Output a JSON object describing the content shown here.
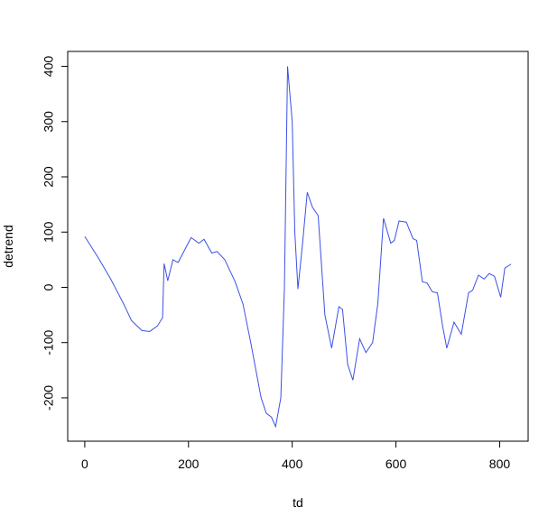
{
  "chart_data": {
    "type": "line",
    "xlabel": "td",
    "ylabel": "detrend",
    "xlim": [
      -32.9,
      854.9
    ],
    "ylim": [
      -278.5,
      427
    ],
    "xticks": [
      0,
      200,
      400,
      600,
      800
    ],
    "yticks": [
      -200,
      -100,
      0,
      100,
      200,
      300,
      400
    ],
    "series": [
      {
        "color": "#3b50e6",
        "x": [
          0,
          25,
          50,
          75,
          90,
          110,
          125,
          140,
          150,
          153,
          160,
          170,
          180,
          205,
          220,
          230,
          245,
          255,
          270,
          290,
          305,
          320,
          340,
          350,
          360,
          368,
          378,
          385,
          391,
          400,
          405,
          411,
          420,
          429,
          439,
          450,
          463,
          476,
          490,
          497,
          507,
          517,
          530,
          542,
          555,
          565,
          576,
          590,
          597,
          606,
          620,
          633,
          640,
          651,
          660,
          670,
          680,
          690,
          698,
          712,
          726,
          740,
          748,
          759,
          770,
          780,
          790,
          802,
          810,
          822
        ],
        "values": [
          92,
          55,
          15,
          -30,
          -60,
          -78,
          -80,
          -70,
          -55,
          43,
          12,
          50,
          45,
          90,
          80,
          87,
          62,
          65,
          50,
          10,
          -30,
          -100,
          -200,
          -228,
          -235,
          -252,
          -200,
          0,
          400,
          300,
          100,
          -3,
          80,
          172,
          145,
          130,
          -50,
          -110,
          -35,
          -40,
          -140,
          -168,
          -93,
          -118,
          -100,
          -30,
          125,
          80,
          85,
          120,
          118,
          88,
          85,
          10,
          8,
          -8,
          -10,
          -70,
          -110,
          -63,
          -85,
          -10,
          -5,
          22,
          15,
          25,
          20,
          -18,
          35,
          42
        ]
      }
    ]
  }
}
